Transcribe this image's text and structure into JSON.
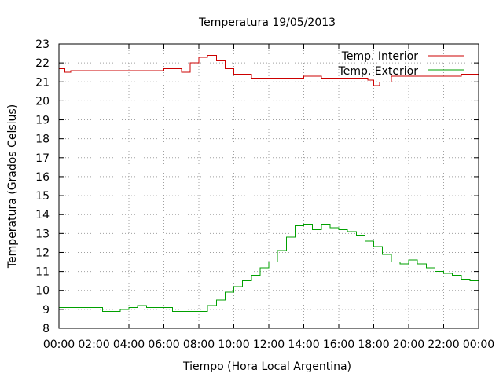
{
  "chart_data": {
    "type": "line",
    "title": "Temperatura 19/05/2013",
    "xlabel": "Tiempo (Hora Local Argentina)",
    "ylabel": "Temperatura (Grados Celsius)",
    "xlim": [
      "00:00",
      "24:00"
    ],
    "ylim": [
      8,
      23
    ],
    "x_ticks": [
      "00:00",
      "02:00",
      "04:00",
      "06:00",
      "08:00",
      "10:00",
      "12:00",
      "14:00",
      "16:00",
      "18:00",
      "20:00",
      "22:00",
      "00:00"
    ],
    "y_ticks": [
      8,
      9,
      10,
      11,
      12,
      13,
      14,
      15,
      16,
      17,
      18,
      19,
      20,
      21,
      22,
      23
    ],
    "grid": true,
    "legend_position": "top-right",
    "series": [
      {
        "name": "Temp. Interior",
        "color": "#cc0000",
        "x": [
          "00:00",
          "00:20",
          "00:40",
          "01:00",
          "02:00",
          "03:00",
          "04:00",
          "05:00",
          "06:00",
          "06:30",
          "07:00",
          "07:30",
          "08:00",
          "08:30",
          "09:00",
          "09:30",
          "10:00",
          "11:00",
          "12:00",
          "13:00",
          "14:00",
          "15:00",
          "16:00",
          "17:00",
          "17:40",
          "18:00",
          "18:20",
          "19:00",
          "20:00",
          "21:00",
          "22:00",
          "23:00",
          "24:00"
        ],
        "y": [
          21.7,
          21.5,
          21.6,
          21.6,
          21.6,
          21.6,
          21.6,
          21.6,
          21.7,
          21.7,
          21.5,
          22.0,
          22.3,
          22.4,
          22.1,
          21.7,
          21.4,
          21.2,
          21.2,
          21.2,
          21.3,
          21.2,
          21.2,
          21.2,
          21.1,
          20.8,
          21.0,
          21.3,
          21.3,
          21.3,
          21.3,
          21.4,
          21.4
        ]
      },
      {
        "name": "Temp. Exterior",
        "color": "#00a000",
        "x": [
          "00:00",
          "01:00",
          "02:00",
          "02:30",
          "03:00",
          "03:30",
          "04:00",
          "04:30",
          "05:00",
          "06:00",
          "06:30",
          "07:00",
          "08:00",
          "08:30",
          "09:00",
          "09:30",
          "10:00",
          "10:30",
          "11:00",
          "11:30",
          "12:00",
          "12:30",
          "13:00",
          "13:30",
          "14:00",
          "14:30",
          "15:00",
          "15:30",
          "16:00",
          "16:30",
          "17:00",
          "17:30",
          "18:00",
          "18:30",
          "19:00",
          "19:30",
          "20:00",
          "20:30",
          "21:00",
          "21:30",
          "22:00",
          "22:30",
          "23:00",
          "23:30",
          "24:00"
        ],
        "y": [
          9.1,
          9.1,
          9.1,
          8.9,
          8.9,
          9.0,
          9.1,
          9.2,
          9.1,
          9.1,
          8.9,
          8.9,
          8.9,
          9.2,
          9.5,
          9.9,
          10.2,
          10.5,
          10.8,
          11.2,
          11.5,
          12.1,
          12.8,
          13.4,
          13.5,
          13.2,
          13.5,
          13.3,
          13.2,
          13.1,
          12.9,
          12.6,
          12.3,
          11.9,
          11.5,
          11.4,
          11.6,
          11.4,
          11.2,
          11.0,
          10.9,
          10.8,
          10.6,
          10.5,
          10.4
        ]
      }
    ]
  }
}
